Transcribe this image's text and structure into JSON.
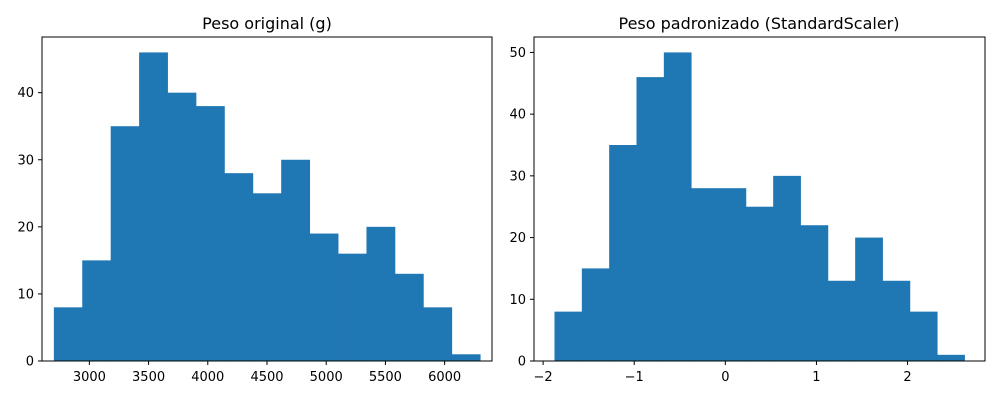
{
  "chart_data": [
    {
      "type": "bar",
      "title": "Peso original (g)",
      "xlabel": "",
      "ylabel": "",
      "bin_edges": [
        2700,
        2940,
        3180,
        3420,
        3660,
        3900,
        4140,
        4380,
        4620,
        4860,
        5100,
        5340,
        5580,
        5820,
        6060,
        6300
      ],
      "values": [
        8,
        15,
        35,
        46,
        40,
        38,
        28,
        25,
        30,
        19,
        16,
        20,
        13,
        8,
        1
      ],
      "xlim": [
        2600,
        6400
      ],
      "ylim": [
        0,
        48.3
      ],
      "xticks": [
        3000,
        3500,
        4000,
        4500,
        5000,
        5500,
        6000
      ],
      "xtick_labels": [
        "3000",
        "3500",
        "4000",
        "4500",
        "5000",
        "5500",
        "6000"
      ],
      "yticks": [
        0,
        10,
        20,
        30,
        40
      ],
      "ytick_labels": [
        "0",
        "10",
        "20",
        "30",
        "40"
      ],
      "color": "#1f77b4",
      "grid": false
    },
    {
      "type": "bar",
      "title": "Peso padronizado (StandardScaler)",
      "xlabel": "",
      "ylabel": "",
      "bin_edges": [
        -1.875,
        -1.575,
        -1.275,
        -0.975,
        -0.675,
        -0.375,
        -0.075,
        0.225,
        0.525,
        0.825,
        1.125,
        1.425,
        1.725,
        2.025,
        2.325,
        2.625
      ],
      "values": [
        8,
        15,
        35,
        46,
        50,
        28,
        28,
        25,
        30,
        22,
        13,
        20,
        13,
        8,
        1
      ],
      "xlim": [
        -2.1,
        2.85
      ],
      "ylim": [
        0,
        52.5
      ],
      "xticks": [
        -2,
        -1,
        0,
        1,
        2
      ],
      "xtick_labels": [
        "−2",
        "−1",
        "0",
        "1",
        "2"
      ],
      "yticks": [
        0,
        10,
        20,
        30,
        40,
        50
      ],
      "ytick_labels": [
        "0",
        "10",
        "20",
        "30",
        "40",
        "50"
      ],
      "color": "#1f77b4",
      "grid": false
    }
  ]
}
